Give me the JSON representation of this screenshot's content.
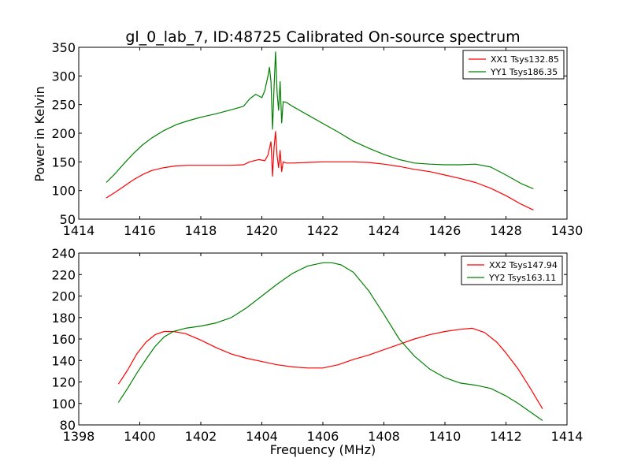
{
  "figure": {
    "title": "gl_0_lab_7, ID:48725 Calibrated On-source spectrum",
    "xlabel": "Frequency (MHz)",
    "ylabel": "Power in Kelvin"
  },
  "chart_data": [
    {
      "type": "line",
      "title": "gl_0_lab_7, ID:48725 Calibrated On-source spectrum",
      "ylabel": "Power in Kelvin",
      "xlabel": "",
      "xlim": [
        1414,
        1430
      ],
      "ylim": [
        50,
        350
      ],
      "xticks": [
        1414,
        1416,
        1418,
        1420,
        1422,
        1424,
        1426,
        1428,
        1430
      ],
      "yticks": [
        50,
        100,
        150,
        200,
        250,
        300,
        350
      ],
      "legend": "top-right",
      "grid": false,
      "series": [
        {
          "name": "XX1 Tsys132.85",
          "color": "#ff0000",
          "x": [
            1414.9,
            1415.2,
            1415.5,
            1415.8,
            1416.1,
            1416.4,
            1416.8,
            1417.2,
            1417.6,
            1418.0,
            1418.5,
            1419.0,
            1419.4,
            1419.6,
            1419.9,
            1420.1,
            1420.2,
            1420.3,
            1420.35,
            1420.4,
            1420.45,
            1420.5,
            1420.55,
            1420.6,
            1420.65,
            1420.7,
            1420.8,
            1421.0,
            1421.5,
            1422.0,
            1422.5,
            1423.0,
            1423.5,
            1424.0,
            1424.5,
            1425.0,
            1425.5,
            1426.0,
            1426.5,
            1427.0,
            1427.5,
            1428.0,
            1428.5,
            1428.9
          ],
          "y": [
            87,
            97,
            108,
            119,
            128,
            135,
            140,
            143,
            144,
            144,
            144,
            144,
            145,
            150,
            154,
            152,
            162,
            185,
            125,
            175,
            203,
            160,
            140,
            170,
            133,
            150,
            148,
            148,
            149,
            150,
            150,
            150,
            149,
            146,
            142,
            137,
            133,
            127,
            121,
            114,
            104,
            91,
            76,
            66
          ]
        },
        {
          "name": "YY1 Tsys186.35",
          "color": "#008000",
          "x": [
            1414.9,
            1415.2,
            1415.5,
            1415.8,
            1416.1,
            1416.4,
            1416.8,
            1417.2,
            1417.6,
            1418.0,
            1418.5,
            1419.0,
            1419.4,
            1419.6,
            1419.8,
            1420.0,
            1420.1,
            1420.2,
            1420.25,
            1420.3,
            1420.35,
            1420.4,
            1420.45,
            1420.5,
            1420.55,
            1420.6,
            1420.65,
            1420.7,
            1420.8,
            1421.0,
            1421.5,
            1422.0,
            1422.5,
            1423.0,
            1423.5,
            1424.0,
            1424.5,
            1425.0,
            1425.5,
            1426.0,
            1426.5,
            1427.0,
            1427.5,
            1428.0,
            1428.5,
            1428.9
          ],
          "y": [
            114,
            130,
            148,
            165,
            180,
            192,
            205,
            215,
            222,
            228,
            234,
            241,
            247,
            260,
            268,
            262,
            275,
            300,
            315,
            290,
            207,
            280,
            342,
            270,
            240,
            290,
            218,
            255,
            254,
            247,
            232,
            217,
            202,
            186,
            174,
            163,
            154,
            148,
            146,
            145,
            145,
            146,
            141,
            127,
            112,
            103
          ]
        }
      ]
    },
    {
      "type": "line",
      "title": "",
      "xlabel": "Frequency (MHz)",
      "ylabel": "",
      "xlim": [
        1398,
        1414
      ],
      "ylim": [
        80,
        240
      ],
      "xticks": [
        1398,
        1400,
        1402,
        1404,
        1406,
        1408,
        1410,
        1412,
        1414
      ],
      "yticks": [
        80,
        100,
        120,
        140,
        160,
        180,
        200,
        220,
        240
      ],
      "legend": "top-right",
      "grid": false,
      "series": [
        {
          "name": "XX2 Tsys147.94",
          "color": "#ff0000",
          "x": [
            1399.3,
            1399.6,
            1399.9,
            1400.2,
            1400.5,
            1400.8,
            1401.1,
            1401.5,
            1402.0,
            1402.5,
            1403.0,
            1403.5,
            1404.0,
            1404.5,
            1405.0,
            1405.5,
            1406.0,
            1406.5,
            1407.0,
            1407.5,
            1408.0,
            1408.5,
            1409.0,
            1409.5,
            1410.0,
            1410.5,
            1410.9,
            1411.3,
            1411.7,
            1412.0,
            1412.4,
            1412.8,
            1413.2
          ],
          "y": [
            118,
            131,
            146,
            157,
            164,
            167,
            167,
            165,
            159,
            152,
            146,
            142,
            139,
            136,
            134,
            133,
            133,
            136,
            141,
            145,
            150,
            155,
            160,
            164,
            167,
            169,
            170,
            166,
            157,
            147,
            132,
            114,
            95
          ]
        },
        {
          "name": "YY2 Tsys163.11",
          "color": "#008000",
          "x": [
            1399.3,
            1399.6,
            1399.9,
            1400.2,
            1400.5,
            1400.8,
            1401.1,
            1401.5,
            1402.0,
            1402.5,
            1403.0,
            1403.5,
            1404.0,
            1404.5,
            1405.0,
            1405.5,
            1406.0,
            1406.3,
            1406.6,
            1407.0,
            1407.5,
            1408.0,
            1408.5,
            1409.0,
            1409.5,
            1410.0,
            1410.5,
            1411.0,
            1411.5,
            1412.0,
            1412.4,
            1412.8,
            1413.2
          ],
          "y": [
            101,
            114,
            128,
            141,
            153,
            162,
            167,
            170,
            172,
            175,
            180,
            189,
            200,
            211,
            221,
            228,
            231,
            231,
            229,
            222,
            205,
            183,
            160,
            144,
            132,
            124,
            119,
            117,
            114,
            107,
            100,
            92,
            84
          ]
        }
      ]
    }
  ]
}
